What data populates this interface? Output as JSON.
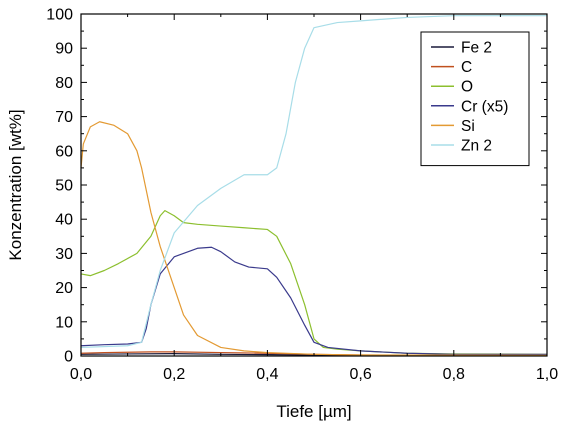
{
  "chart_data": {
    "type": "line",
    "title": "",
    "xlabel": "Tiefe [µm]",
    "ylabel": "Konzentration [wt%]",
    "xlim": [
      0,
      1
    ],
    "ylim": [
      0,
      100
    ],
    "x_ticks": [
      0,
      0.2,
      0.4,
      0.6,
      0.8,
      1.0
    ],
    "x_tick_labels": [
      "0,0",
      "0,2",
      "0,4",
      "0,6",
      "0,8",
      "1,0"
    ],
    "y_ticks": [
      0,
      10,
      20,
      30,
      40,
      50,
      60,
      70,
      80,
      90,
      100
    ],
    "y_tick_labels": [
      "0",
      "10",
      "20",
      "30",
      "40",
      "50",
      "60",
      "70",
      "80",
      "90",
      "100"
    ],
    "grid": false,
    "legend_position": "top-right",
    "series": [
      {
        "name": "Fe 2",
        "color": "#1a1a3a",
        "points": [
          [
            0,
            0.5
          ],
          [
            0.1,
            0.6
          ],
          [
            0.2,
            0.7
          ],
          [
            0.3,
            0.5
          ],
          [
            0.4,
            0.4
          ],
          [
            0.5,
            0.3
          ],
          [
            0.6,
            0.2
          ],
          [
            0.8,
            0.2
          ],
          [
            1.0,
            0.2
          ]
        ]
      },
      {
        "name": "C",
        "color": "#c0501e",
        "points": [
          [
            0,
            0.8
          ],
          [
            0.05,
            1.0
          ],
          [
            0.1,
            1.1
          ],
          [
            0.15,
            1.2
          ],
          [
            0.2,
            1.2
          ],
          [
            0.3,
            1.0
          ],
          [
            0.4,
            0.8
          ],
          [
            0.5,
            0.5
          ],
          [
            0.6,
            0.3
          ],
          [
            0.8,
            0.2
          ],
          [
            1.0,
            0.2
          ]
        ]
      },
      {
        "name": "O",
        "color": "#8cbf2e",
        "points": [
          [
            0,
            24
          ],
          [
            0.02,
            23.5
          ],
          [
            0.05,
            25
          ],
          [
            0.08,
            27
          ],
          [
            0.12,
            30
          ],
          [
            0.15,
            35
          ],
          [
            0.17,
            41
          ],
          [
            0.18,
            42.5
          ],
          [
            0.2,
            41
          ],
          [
            0.22,
            39
          ],
          [
            0.25,
            38.5
          ],
          [
            0.3,
            38
          ],
          [
            0.35,
            37.5
          ],
          [
            0.4,
            37
          ],
          [
            0.42,
            35
          ],
          [
            0.45,
            27
          ],
          [
            0.48,
            15
          ],
          [
            0.5,
            5
          ],
          [
            0.52,
            2.5
          ],
          [
            0.55,
            2
          ],
          [
            0.6,
            1.5
          ],
          [
            0.7,
            0.8
          ],
          [
            0.8,
            0.6
          ],
          [
            1.0,
            0.5
          ]
        ]
      },
      {
        "name": "Cr (x5)",
        "color": "#3a3a8c",
        "points": [
          [
            0,
            3
          ],
          [
            0.05,
            3.3
          ],
          [
            0.1,
            3.5
          ],
          [
            0.13,
            4
          ],
          [
            0.14,
            8
          ],
          [
            0.15,
            15
          ],
          [
            0.17,
            24
          ],
          [
            0.2,
            29
          ],
          [
            0.25,
            31.5
          ],
          [
            0.28,
            31.8
          ],
          [
            0.3,
            30.5
          ],
          [
            0.33,
            27.5
          ],
          [
            0.36,
            26
          ],
          [
            0.4,
            25.5
          ],
          [
            0.42,
            23
          ],
          [
            0.45,
            17
          ],
          [
            0.48,
            9
          ],
          [
            0.5,
            4
          ],
          [
            0.53,
            2.5
          ],
          [
            0.6,
            1.5
          ],
          [
            0.7,
            0.8
          ],
          [
            0.8,
            0.5
          ],
          [
            1.0,
            0.5
          ]
        ]
      },
      {
        "name": "Si",
        "color": "#e39a33",
        "points": [
          [
            0,
            55
          ],
          [
            0.005,
            62
          ],
          [
            0.02,
            67
          ],
          [
            0.04,
            68.5
          ],
          [
            0.07,
            67.5
          ],
          [
            0.1,
            65
          ],
          [
            0.12,
            60
          ],
          [
            0.13,
            55
          ],
          [
            0.15,
            42
          ],
          [
            0.17,
            32
          ],
          [
            0.2,
            20
          ],
          [
            0.22,
            12
          ],
          [
            0.25,
            6
          ],
          [
            0.3,
            2.5
          ],
          [
            0.35,
            1.5
          ],
          [
            0.4,
            1
          ],
          [
            0.5,
            0.5
          ],
          [
            0.6,
            0.3
          ],
          [
            1.0,
            0.2
          ]
        ]
      },
      {
        "name": "Zn 2",
        "color": "#a8dde8",
        "points": [
          [
            0,
            2.5
          ],
          [
            0.1,
            3
          ],
          [
            0.13,
            4
          ],
          [
            0.15,
            15
          ],
          [
            0.17,
            25
          ],
          [
            0.2,
            36
          ],
          [
            0.25,
            44
          ],
          [
            0.3,
            49
          ],
          [
            0.35,
            53
          ],
          [
            0.4,
            53
          ],
          [
            0.42,
            55
          ],
          [
            0.44,
            65
          ],
          [
            0.46,
            80
          ],
          [
            0.48,
            90
          ],
          [
            0.5,
            96
          ],
          [
            0.55,
            97.5
          ],
          [
            0.6,
            98
          ],
          [
            0.7,
            99
          ],
          [
            0.8,
            99.5
          ],
          [
            1.0,
            99.5
          ]
        ]
      }
    ]
  }
}
